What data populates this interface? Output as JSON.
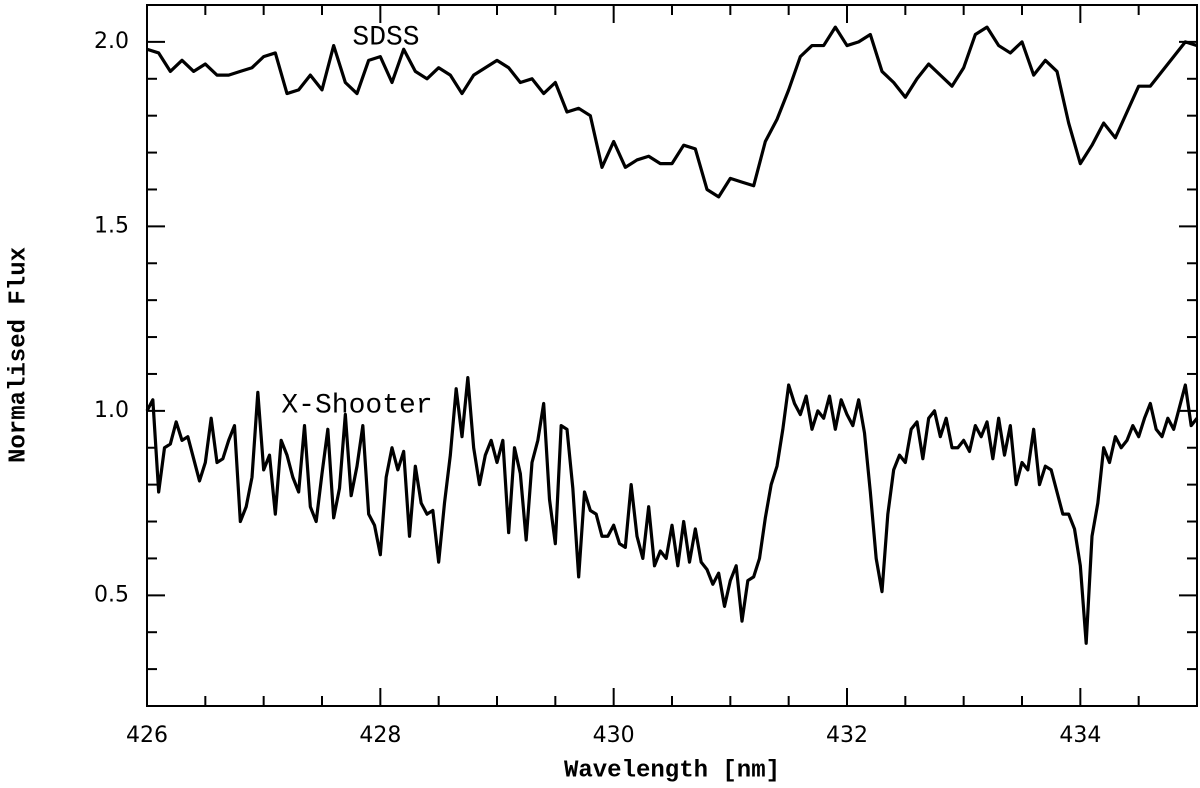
{
  "chart_data": {
    "type": "line",
    "xlabel": "Wavelength [nm]",
    "ylabel": "Normalised Flux",
    "xlim": [
      426,
      435
    ],
    "ylim": [
      0.2,
      2.1
    ],
    "xticks": [
      426,
      428,
      430,
      432,
      434
    ],
    "xminorticks": [
      426.5,
      427,
      427.5,
      428.5,
      429,
      429.5,
      430.5,
      431,
      431.5,
      432.5,
      433,
      433.5,
      434.5
    ],
    "yticks": [
      0.5,
      {
        "value": 1,
        "label": "1.0"
      },
      1.5,
      {
        "value": 2,
        "label": "2.0"
      }
    ],
    "yminorticks": [
      0.3,
      0.4,
      0.6,
      0.7,
      0.8,
      0.9,
      1.1,
      1.2,
      1.3,
      1.4,
      1.6,
      1.7,
      1.8,
      1.9
    ],
    "series": [
      {
        "name": "SDSS",
        "color": "#000000",
        "x": [
          426,
          426.1,
          426.2,
          426.3,
          426.4,
          426.5,
          426.6,
          426.7,
          426.8,
          426.9,
          427,
          427.1,
          427.2,
          427.3,
          427.4,
          427.5,
          427.6,
          427.7,
          427.8,
          427.9,
          428,
          428.1,
          428.2,
          428.3,
          428.4,
          428.5,
          428.6,
          428.7,
          428.8,
          428.9,
          429,
          429.1,
          429.2,
          429.3,
          429.4,
          429.5,
          429.6,
          429.7,
          429.8,
          429.9,
          430,
          430.1,
          430.2,
          430.3,
          430.4,
          430.5,
          430.6,
          430.7,
          430.8,
          430.9,
          431,
          431.1,
          431.2,
          431.3,
          431.4,
          431.5,
          431.6,
          431.7,
          431.8,
          431.9,
          432,
          432.1,
          432.2,
          432.3,
          432.4,
          432.5,
          432.6,
          432.7,
          432.8,
          432.9,
          433,
          433.1,
          433.2,
          433.3,
          433.4,
          433.5,
          433.6,
          433.7,
          433.8,
          433.9,
          434,
          434.1,
          434.2,
          434.3,
          434.4,
          434.5,
          434.6,
          434.7,
          434.8,
          434.9,
          435
        ],
        "values": [
          1.98,
          1.97,
          1.92,
          1.95,
          1.92,
          1.94,
          1.91,
          1.91,
          1.92,
          1.93,
          1.96,
          1.97,
          1.86,
          1.87,
          1.91,
          1.87,
          1.99,
          1.89,
          1.86,
          1.95,
          1.96,
          1.89,
          1.98,
          1.92,
          1.9,
          1.93,
          1.91,
          1.86,
          1.91,
          1.93,
          1.95,
          1.93,
          1.89,
          1.9,
          1.86,
          1.89,
          1.81,
          1.82,
          1.8,
          1.66,
          1.73,
          1.66,
          1.68,
          1.69,
          1.67,
          1.67,
          1.72,
          1.71,
          1.6,
          1.58,
          1.63,
          1.62,
          1.61,
          1.73,
          1.79,
          1.87,
          1.96,
          1.99,
          1.99,
          2.04,
          1.99,
          2.0,
          2.02,
          1.92,
          1.89,
          1.85,
          1.9,
          1.94,
          1.91,
          1.88,
          1.93,
          2.02,
          2.04,
          1.99,
          1.97,
          2.0,
          1.91,
          1.95,
          1.92,
          1.78,
          1.67,
          1.72,
          1.78,
          1.74,
          1.81,
          1.88,
          1.88,
          1.92,
          1.96,
          2.0,
          1.99
        ]
      },
      {
        "name": "X-Shooter",
        "color": "#000000",
        "x": [
          426,
          426.05,
          426.1,
          426.15,
          426.2,
          426.25,
          426.3,
          426.35,
          426.4,
          426.45,
          426.5,
          426.55,
          426.6,
          426.65,
          426.7,
          426.75,
          426.8,
          426.85,
          426.9,
          426.95,
          427,
          427.05,
          427.1,
          427.15,
          427.2,
          427.25,
          427.3,
          427.35,
          427.4,
          427.45,
          427.5,
          427.55,
          427.6,
          427.65,
          427.7,
          427.75,
          427.8,
          427.85,
          427.9,
          427.95,
          428,
          428.05,
          428.1,
          428.15,
          428.2,
          428.25,
          428.3,
          428.35,
          428.4,
          428.45,
          428.5,
          428.55,
          428.6,
          428.65,
          428.7,
          428.75,
          428.8,
          428.85,
          428.9,
          428.95,
          429,
          429.05,
          429.1,
          429.15,
          429.2,
          429.25,
          429.3,
          429.35,
          429.4,
          429.45,
          429.5,
          429.55,
          429.6,
          429.65,
          429.7,
          429.75,
          429.8,
          429.85,
          429.9,
          429.95,
          430,
          430.05,
          430.1,
          430.15,
          430.2,
          430.25,
          430.3,
          430.35,
          430.4,
          430.45,
          430.5,
          430.55,
          430.6,
          430.65,
          430.7,
          430.75,
          430.8,
          430.85,
          430.9,
          430.95,
          431,
          431.05,
          431.1,
          431.15,
          431.2,
          431.25,
          431.3,
          431.35,
          431.4,
          431.45,
          431.5,
          431.55,
          431.6,
          431.65,
          431.7,
          431.75,
          431.8,
          431.85,
          431.9,
          431.95,
          432,
          432.05,
          432.1,
          432.15,
          432.2,
          432.25,
          432.3,
          432.35,
          432.4,
          432.45,
          432.5,
          432.55,
          432.6,
          432.65,
          432.7,
          432.75,
          432.8,
          432.85,
          432.9,
          432.95,
          433,
          433.05,
          433.1,
          433.15,
          433.2,
          433.25,
          433.3,
          433.35,
          433.4,
          433.45,
          433.5,
          433.55,
          433.6,
          433.65,
          433.7,
          433.75,
          433.8,
          433.85,
          433.9,
          433.95,
          434,
          434.05,
          434.1,
          434.15,
          434.2,
          434.25,
          434.3,
          434.35,
          434.4,
          434.45,
          434.5,
          434.55,
          434.6,
          434.65,
          434.7,
          434.75,
          434.8,
          434.85,
          434.9,
          434.95,
          435
        ],
        "values": [
          1.0,
          1.03,
          0.78,
          0.9,
          0.91,
          0.97,
          0.92,
          0.93,
          0.87,
          0.81,
          0.86,
          0.98,
          0.86,
          0.87,
          0.92,
          0.96,
          0.7,
          0.74,
          0.82,
          1.05,
          0.84,
          0.88,
          0.72,
          0.92,
          0.88,
          0.82,
          0.78,
          0.96,
          0.74,
          0.7,
          0.83,
          0.95,
          0.71,
          0.79,
          0.99,
          0.77,
          0.85,
          0.96,
          0.72,
          0.69,
          0.61,
          0.82,
          0.9,
          0.84,
          0.89,
          0.66,
          0.85,
          0.75,
          0.72,
          0.73,
          0.59,
          0.75,
          0.88,
          1.06,
          0.93,
          1.09,
          0.9,
          0.8,
          0.88,
          0.92,
          0.86,
          0.92,
          0.67,
          0.9,
          0.83,
          0.65,
          0.86,
          0.92,
          1.02,
          0.76,
          0.64,
          0.96,
          0.95,
          0.79,
          0.55,
          0.78,
          0.73,
          0.72,
          0.66,
          0.66,
          0.69,
          0.64,
          0.63,
          0.8,
          0.66,
          0.6,
          0.74,
          0.58,
          0.62,
          0.6,
          0.69,
          0.58,
          0.7,
          0.59,
          0.68,
          0.59,
          0.57,
          0.53,
          0.56,
          0.47,
          0.54,
          0.58,
          0.43,
          0.54,
          0.55,
          0.6,
          0.71,
          0.8,
          0.85,
          0.95,
          1.07,
          1.02,
          0.99,
          1.04,
          0.95,
          1.0,
          0.98,
          1.04,
          0.95,
          1.03,
          0.99,
          0.96,
          1.03,
          0.94,
          0.78,
          0.6,
          0.51,
          0.72,
          0.84,
          0.88,
          0.86,
          0.95,
          0.97,
          0.87,
          0.98,
          1.0,
          0.93,
          0.98,
          0.9,
          0.9,
          0.92,
          0.89,
          0.96,
          0.93,
          0.97,
          0.87,
          0.98,
          0.88,
          0.96,
          0.8,
          0.86,
          0.84,
          0.95,
          0.8,
          0.85,
          0.84,
          0.78,
          0.72,
          0.72,
          0.68,
          0.58,
          0.37,
          0.66,
          0.75,
          0.9,
          0.86,
          0.93,
          0.9,
          0.92,
          0.96,
          0.93,
          0.98,
          1.02,
          0.95,
          0.93,
          0.98,
          0.95,
          1.01,
          1.07,
          0.96,
          0.98
        ]
      }
    ]
  }
}
